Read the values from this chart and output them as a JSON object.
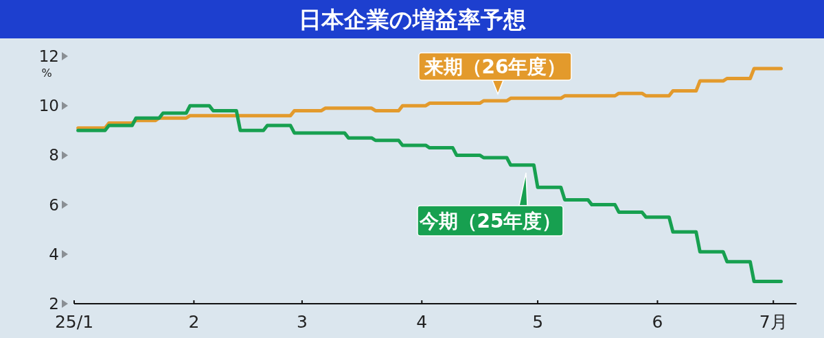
{
  "chart_data": {
    "type": "line",
    "title": "日本企業の増益率予想",
    "ylabel": "%",
    "xlim": [
      "--01-01",
      "--07-07"
    ],
    "ylim": [
      2,
      12
    ],
    "yticks": [
      2,
      4,
      6,
      8,
      10,
      12
    ],
    "xticks": [
      {
        "value": "--01-01",
        "label": "25/1"
      },
      {
        "value": "--02-01",
        "label": "2"
      },
      {
        "value": "--03-01",
        "label": "3"
      },
      {
        "value": "--04-01",
        "label": "4"
      },
      {
        "value": "--05-01",
        "label": "5"
      },
      {
        "value": "--06-01",
        "label": "6"
      },
      {
        "value": "--07-01",
        "label": "7月"
      }
    ],
    "grid": false,
    "series": [
      {
        "name": "来期（26年度）",
        "color": "#e39a2c",
        "x": [
          "--01-02",
          "--01-09",
          "--01-10",
          "--01-16",
          "--01-17",
          "--01-22",
          "--01-23",
          "--01-30",
          "--01-31",
          "--02-26",
          "--02-27",
          "--03-06",
          "--03-07",
          "--03-19",
          "--03-20",
          "--03-26",
          "--03-27",
          "--04-02",
          "--04-03",
          "--04-16",
          "--04-17",
          "--04-23",
          "--04-24",
          "--05-07",
          "--05-08",
          "--05-21",
          "--05-22",
          "--05-28",
          "--05-29",
          "--06-04",
          "--06-05",
          "--06-11",
          "--06-12",
          "--06-18",
          "--06-19",
          "--06-25",
          "--06-26",
          "--07-03"
        ],
        "values": [
          9.1,
          9.1,
          9.3,
          9.3,
          9.4,
          9.4,
          9.5,
          9.5,
          9.6,
          9.6,
          9.8,
          9.8,
          9.9,
          9.9,
          9.8,
          9.8,
          10.0,
          10.0,
          10.1,
          10.1,
          10.2,
          10.2,
          10.3,
          10.3,
          10.4,
          10.4,
          10.5,
          10.5,
          10.4,
          10.4,
          10.6,
          10.6,
          11.0,
          11.0,
          11.1,
          11.1,
          11.5,
          11.5
        ]
      },
      {
        "name": "今期（25年度）",
        "color": "#17a050",
        "x": [
          "--01-02",
          "--01-09",
          "--01-10",
          "--01-16",
          "--01-17",
          "--01-23",
          "--01-24",
          "--01-30",
          "--01-31",
          "--02-05",
          "--02-06",
          "--02-12",
          "--02-13",
          "--02-19",
          "--02-20",
          "--02-26",
          "--02-27",
          "--03-12",
          "--03-13",
          "--03-19",
          "--03-20",
          "--03-26",
          "--03-27",
          "--04-02",
          "--04-03",
          "--04-09",
          "--04-10",
          "--04-16",
          "--04-17",
          "--04-23",
          "--04-24",
          "--04-30",
          "--05-01",
          "--05-07",
          "--05-08",
          "--05-14",
          "--05-15",
          "--05-21",
          "--05-22",
          "--05-28",
          "--05-29",
          "--06-04",
          "--06-05",
          "--06-11",
          "--06-12",
          "--06-18",
          "--06-19",
          "--06-25",
          "--06-26",
          "--07-03"
        ],
        "values": [
          9.0,
          9.0,
          9.2,
          9.2,
          9.5,
          9.5,
          9.7,
          9.7,
          10.0,
          10.0,
          9.8,
          9.8,
          9.0,
          9.0,
          9.2,
          9.2,
          8.9,
          8.9,
          8.7,
          8.7,
          8.6,
          8.6,
          8.4,
          8.4,
          8.3,
          8.3,
          8.0,
          8.0,
          7.9,
          7.9,
          7.6,
          7.6,
          6.7,
          6.7,
          6.2,
          6.2,
          6.0,
          6.0,
          5.7,
          5.7,
          5.5,
          5.5,
          4.9,
          4.9,
          4.1,
          4.1,
          3.7,
          3.7,
          2.9,
          2.9
        ]
      }
    ]
  }
}
